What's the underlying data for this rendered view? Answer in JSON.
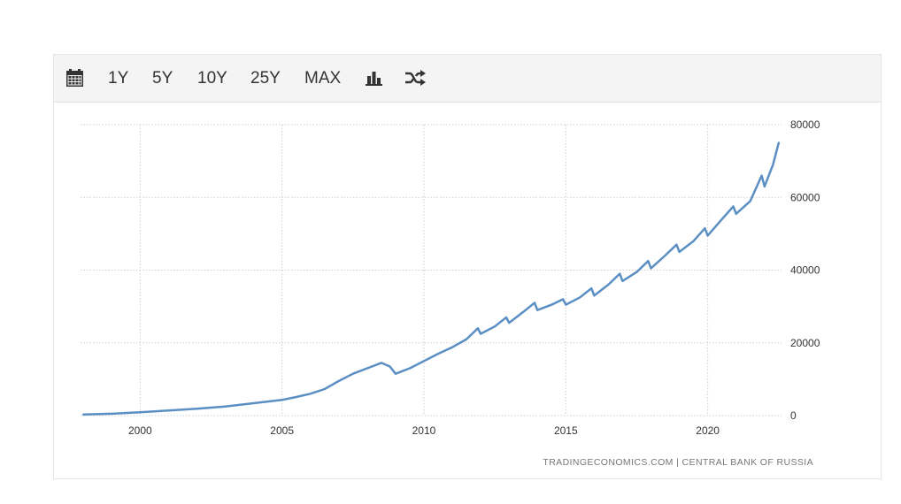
{
  "toolbar": {
    "icons": {
      "calendar": "calendar-icon",
      "bar_chart": "bar-chart-icon",
      "shuffle": "shuffle-icon"
    },
    "ranges": [
      "1Y",
      "5Y",
      "10Y",
      "25Y",
      "MAX"
    ]
  },
  "source": "TRADINGECONOMICS.COM  |  CENTRAL BANK OF RUSSIA",
  "colors": {
    "line": "#5b8fc4",
    "grid": "#cfcfcf",
    "toolbar_bg": "#f4f4f4",
    "text": "#333333"
  },
  "chart_data": {
    "type": "line",
    "title": "",
    "xlabel": "",
    "ylabel": "",
    "xlim": [
      1997.9,
      2022.6
    ],
    "ylim": [
      0,
      80000
    ],
    "x_ticks": [
      2000,
      2005,
      2010,
      2015,
      2020
    ],
    "x_tick_labels": [
      "2000",
      "2005",
      "2010",
      "2015",
      "2020"
    ],
    "y_ticks": [
      0,
      20000,
      40000,
      60000,
      80000
    ],
    "y_tick_labels": [
      "0",
      "20000",
      "40000",
      "60000",
      "80000"
    ],
    "y_axis_side": "right",
    "grid": true,
    "legend": "none",
    "series": [
      {
        "x": [
          1998.0,
          1999.0,
          2000.0,
          2001.0,
          2002.0,
          2003.0,
          2004.0,
          2005.0,
          2005.5,
          2006.0,
          2006.5,
          2007.0,
          2007.5,
          2008.0,
          2008.5,
          2008.8,
          2009.0,
          2009.5,
          2010.0,
          2010.5,
          2011.0,
          2011.5,
          2011.9,
          2012.0,
          2012.5,
          2012.9,
          2013.0,
          2013.5,
          2013.9,
          2014.0,
          2014.5,
          2014.9,
          2015.0,
          2015.5,
          2015.9,
          2016.0,
          2016.5,
          2016.9,
          2017.0,
          2017.5,
          2017.9,
          2018.0,
          2018.5,
          2018.9,
          2019.0,
          2019.5,
          2019.9,
          2020.0,
          2020.5,
          2020.9,
          2021.0,
          2021.5,
          2021.9,
          2022.0,
          2022.3,
          2022.5
        ],
        "y": [
          300,
          500,
          900,
          1400,
          1900,
          2500,
          3400,
          4300,
          5100,
          6000,
          7300,
          9500,
          11500,
          13000,
          14500,
          13500,
          11500,
          13000,
          15000,
          17000,
          18800,
          21000,
          24000,
          22500,
          24500,
          27000,
          25500,
          28500,
          31000,
          29000,
          30500,
          32000,
          30500,
          32500,
          35000,
          33000,
          36000,
          39000,
          37000,
          39500,
          42500,
          40500,
          44000,
          47000,
          45000,
          48000,
          51500,
          49500,
          54000,
          57500,
          55500,
          59000,
          66000,
          63000,
          69000,
          75000
        ]
      }
    ]
  }
}
